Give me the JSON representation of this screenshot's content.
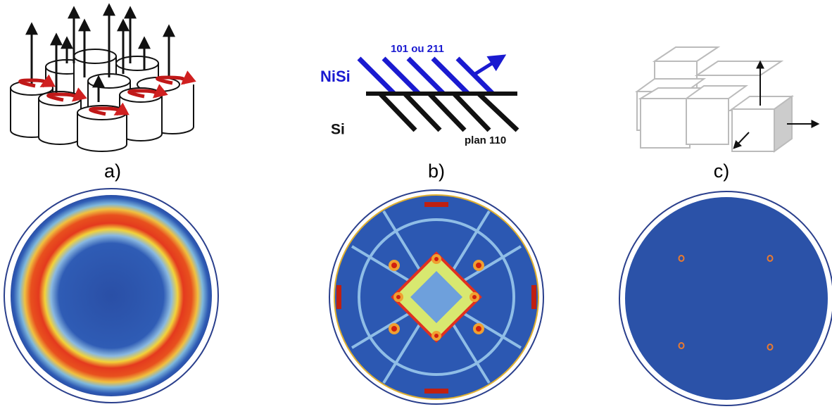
{
  "panels": [
    {
      "label": "a)"
    },
    {
      "label": "b)",
      "texts": {
        "film": "NiSi",
        "film_planes": "101 ou 211",
        "substrate": "Si",
        "substrate_planes": "plan 110"
      }
    },
    {
      "label": "c)"
    }
  ]
}
